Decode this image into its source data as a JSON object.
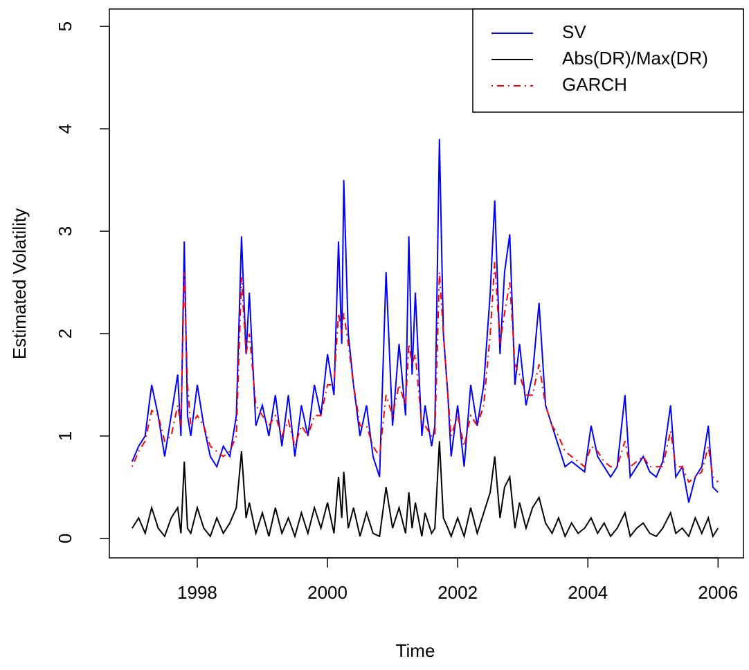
{
  "chart_data": {
    "type": "line",
    "x_label": "Time",
    "y_label": "Estimated Volatility",
    "xlim": [
      1996.65,
      2006.39
    ],
    "ylim": [
      -0.19,
      5.17
    ],
    "xticks": [
      1998,
      2000,
      2002,
      2004,
      2006
    ],
    "yticks": [
      0,
      1,
      2,
      3,
      4,
      5
    ],
    "legend": "topright",
    "x": [
      1997.0,
      1997.1,
      1997.2,
      1997.3,
      1997.4,
      1997.5,
      1997.6,
      1997.7,
      1997.75,
      1997.8,
      1997.85,
      1997.9,
      1998.0,
      1998.1,
      1998.2,
      1998.3,
      1998.4,
      1998.5,
      1998.6,
      1998.68,
      1998.75,
      1998.8,
      1998.9,
      1999.0,
      1999.1,
      1999.2,
      1999.3,
      1999.4,
      1999.5,
      1999.6,
      1999.7,
      1999.8,
      1999.9,
      2000.0,
      2000.1,
      2000.17,
      2000.22,
      2000.25,
      2000.32,
      2000.4,
      2000.5,
      2000.6,
      2000.7,
      2000.8,
      2000.9,
      2001.0,
      2001.1,
      2001.2,
      2001.25,
      2001.3,
      2001.35,
      2001.45,
      2001.5,
      2001.6,
      2001.65,
      2001.72,
      2001.78,
      2001.85,
      2001.9,
      2002.0,
      2002.1,
      2002.2,
      2002.3,
      2002.4,
      2002.5,
      2002.57,
      2002.65,
      2002.72,
      2002.8,
      2002.88,
      2002.95,
      2003.05,
      2003.15,
      2003.25,
      2003.35,
      2003.45,
      2003.55,
      2003.65,
      2003.75,
      2003.85,
      2003.95,
      2004.05,
      2004.15,
      2004.25,
      2004.35,
      2004.45,
      2004.57,
      2004.65,
      2004.75,
      2004.85,
      2004.95,
      2005.05,
      2005.15,
      2005.27,
      2005.35,
      2005.45,
      2005.55,
      2005.65,
      2005.75,
      2005.85,
      2005.92,
      2006.0
    ],
    "series": [
      {
        "name": "SV",
        "color": "#0000ff",
        "dash": "solid",
        "values": [
          0.75,
          0.9,
          1.0,
          1.5,
          1.2,
          0.8,
          1.2,
          1.6,
          1.0,
          2.9,
          1.2,
          1.0,
          1.5,
          1.1,
          0.8,
          0.7,
          0.9,
          0.8,
          1.2,
          2.95,
          1.8,
          2.4,
          1.1,
          1.3,
          1.0,
          1.4,
          0.9,
          1.4,
          0.8,
          1.3,
          1.0,
          1.5,
          1.2,
          1.8,
          1.4,
          2.9,
          1.9,
          3.5,
          2.0,
          1.5,
          1.0,
          1.3,
          0.8,
          0.6,
          2.6,
          1.1,
          1.9,
          1.2,
          2.95,
          1.6,
          2.4,
          1.0,
          1.3,
          0.9,
          1.1,
          3.9,
          2.0,
          1.4,
          0.8,
          1.3,
          0.7,
          1.5,
          1.1,
          1.5,
          2.4,
          3.3,
          1.8,
          2.6,
          2.97,
          1.5,
          1.9,
          1.3,
          1.6,
          2.3,
          1.3,
          1.1,
          0.9,
          0.7,
          0.75,
          0.7,
          0.65,
          1.1,
          0.8,
          0.7,
          0.6,
          0.7,
          1.4,
          0.6,
          0.7,
          0.8,
          0.65,
          0.6,
          0.75,
          1.3,
          0.6,
          0.7,
          0.35,
          0.6,
          0.7,
          1.1,
          0.5,
          0.45
        ]
      },
      {
        "name": "Abs(DR)/Max(DR)",
        "color": "#000000",
        "dash": "solid",
        "values": [
          0.1,
          0.2,
          0.05,
          0.3,
          0.1,
          0.02,
          0.2,
          0.3,
          0.05,
          0.75,
          0.1,
          0.05,
          0.3,
          0.1,
          0.02,
          0.2,
          0.05,
          0.15,
          0.3,
          0.85,
          0.2,
          0.35,
          0.05,
          0.25,
          0.02,
          0.3,
          0.05,
          0.2,
          0.02,
          0.25,
          0.05,
          0.3,
          0.1,
          0.35,
          0.05,
          0.6,
          0.2,
          0.65,
          0.1,
          0.3,
          0.02,
          0.25,
          0.05,
          0.02,
          0.5,
          0.1,
          0.3,
          0.05,
          0.45,
          0.1,
          0.35,
          0.02,
          0.25,
          0.05,
          0.1,
          0.95,
          0.2,
          0.1,
          0.02,
          0.2,
          0.02,
          0.3,
          0.05,
          0.25,
          0.45,
          0.8,
          0.2,
          0.5,
          0.6,
          0.1,
          0.35,
          0.1,
          0.3,
          0.4,
          0.15,
          0.05,
          0.2,
          0.02,
          0.15,
          0.05,
          0.1,
          0.2,
          0.05,
          0.15,
          0.02,
          0.1,
          0.25,
          0.02,
          0.1,
          0.15,
          0.05,
          0.02,
          0.1,
          0.25,
          0.05,
          0.1,
          0.02,
          0.2,
          0.05,
          0.2,
          0.02,
          0.1
        ]
      },
      {
        "name": "GARCH",
        "color": "#ff0000",
        "dash": "dotdash",
        "values": [
          0.7,
          0.85,
          0.95,
          1.25,
          1.2,
          0.95,
          1.0,
          1.3,
          1.1,
          2.6,
          1.5,
          1.1,
          1.2,
          1.1,
          0.9,
          0.85,
          0.8,
          0.85,
          1.0,
          2.55,
          1.8,
          2.0,
          1.3,
          1.2,
          1.1,
          1.2,
          1.0,
          1.15,
          0.9,
          1.1,
          1.0,
          1.2,
          1.2,
          1.5,
          1.5,
          2.2,
          2.0,
          2.2,
          1.9,
          1.5,
          1.1,
          1.1,
          0.9,
          0.8,
          1.4,
          1.2,
          1.5,
          1.3,
          1.9,
          1.7,
          1.8,
          1.1,
          1.1,
          1.0,
          1.0,
          2.6,
          2.0,
          1.4,
          1.0,
          1.2,
          0.9,
          1.2,
          1.1,
          1.3,
          2.0,
          2.7,
          1.9,
          2.2,
          2.5,
          1.7,
          1.6,
          1.4,
          1.4,
          1.7,
          1.3,
          1.1,
          1.0,
          0.85,
          0.8,
          0.75,
          0.7,
          0.9,
          0.85,
          0.75,
          0.7,
          0.7,
          0.95,
          0.7,
          0.75,
          0.8,
          0.7,
          0.7,
          0.7,
          1.05,
          0.7,
          0.7,
          0.55,
          0.6,
          0.65,
          0.9,
          0.6,
          0.55
        ]
      }
    ]
  }
}
